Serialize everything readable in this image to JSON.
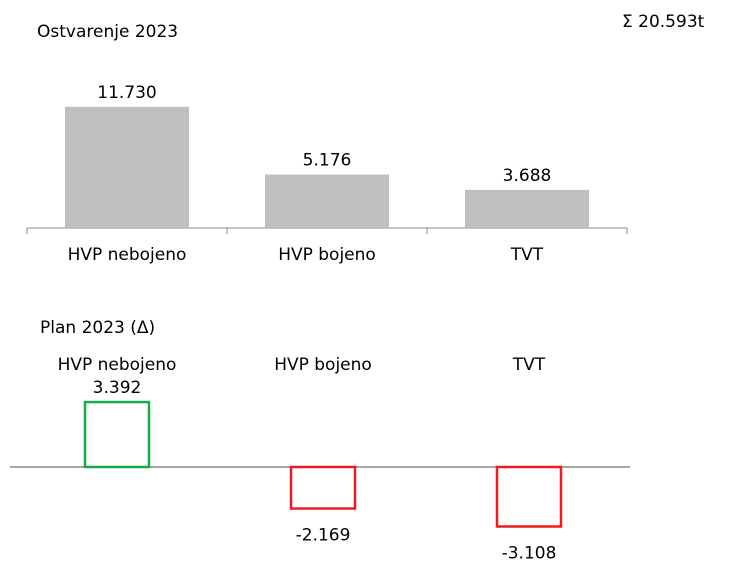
{
  "chart_data": [
    {
      "type": "bar",
      "title": "Ostvarenje 2023",
      "annotation": "Σ 20.593t",
      "categories": [
        "HVP nebojeno",
        "HVP bojeno",
        "TVT"
      ],
      "values": [
        11730,
        5176,
        3688
      ],
      "value_labels": [
        "11.730",
        "5.176",
        "3.688"
      ],
      "color": "#bfbfbf",
      "ylim": [
        0,
        12000
      ]
    },
    {
      "type": "delta_bar",
      "title": "Plan 2023 (Δ)",
      "categories": [
        "HVP nebojeno",
        "HVP bojeno",
        "TVT"
      ],
      "values": [
        3392,
        -2169,
        -3108
      ],
      "value_labels": [
        "3.392",
        "-2.169",
        "-3.108"
      ],
      "positive_color": "#1aaa4a",
      "negative_color": "#ee1c1c",
      "ylim": [
        -3500,
        3500
      ]
    }
  ]
}
